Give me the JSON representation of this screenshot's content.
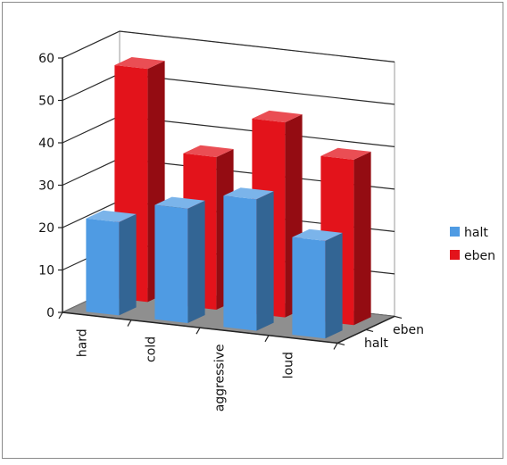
{
  "chart_data": {
    "type": "bar",
    "subtype": "3d-clustered-depth",
    "categories": [
      "hard",
      "cold",
      "aggressive",
      "loud"
    ],
    "series": [
      {
        "name": "halt",
        "values": [
          22,
          27,
          31,
          23
        ],
        "color": "#4f9be3"
      },
      {
        "name": "eben",
        "values": [
          55,
          36,
          46,
          39
        ],
        "color": "#e3131b"
      }
    ],
    "depth_labels": [
      "eben",
      "halt"
    ],
    "ylim": [
      0,
      60
    ],
    "yticks": [
      "0",
      "10",
      "20",
      "30",
      "40",
      "50",
      "60"
    ],
    "grid": true,
    "legend_position": "right",
    "floor_color": "#8f8f8f"
  }
}
